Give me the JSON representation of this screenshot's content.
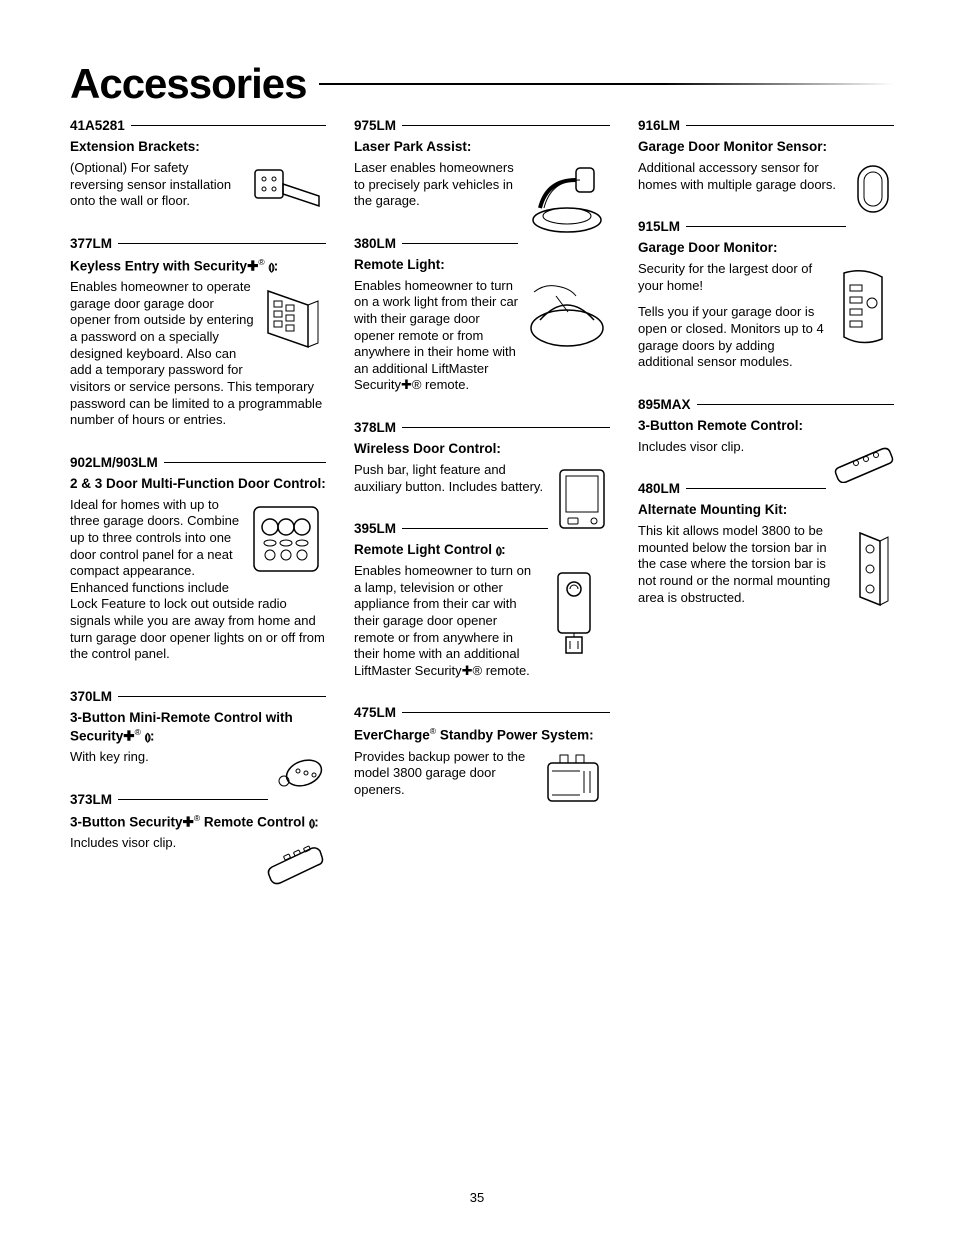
{
  "page_title": "Accessories",
  "page_number": "35",
  "columns": [
    [
      {
        "model": "41A5281",
        "title": "Extension Brackets:",
        "body": "(Optional) For safety reversing sensor installation onto the wall or floor.",
        "illus": "bracket",
        "iw": 76,
        "ih": 54
      },
      {
        "model": "377LM",
        "title_html": "Keyless Entry with Security<span class=\"plus\">✚</span><span class=\"reg\">®</span> <span class=\"sym\">⦅⦆</span>:",
        "body": "Enables homeowner to operate garage door garage door opener from outside by entering a password on a specially designed keyboard. Also can add a temporary password for visitors or service persons. This temporary password can be limited to a programmable number of hours or entries.",
        "illus": "keypad",
        "iw": 66,
        "ih": 78,
        "wrap_after": 4
      },
      {
        "model": "902LM/903LM",
        "title": "2 & 3 Door Multi-Function Door Control:",
        "body": "Ideal for homes with up to three garage doors. Combine up to three controls into one door control panel for a neat compact appearance. Enhanced functions include Lock Feature to lock out outside radio signals while you are away from home and turn garage door opener lights on or off from the control panel.",
        "illus": "multi-control",
        "iw": 80,
        "ih": 80,
        "wrap_after": 4
      },
      {
        "model": "370LM",
        "title_html": "3-Button Mini-Remote Control with Security<span class=\"plus\">✚</span><span class=\"reg\">®</span> <span class=\"sym\">⦅⦆</span>:",
        "body": "With key ring.",
        "illus": "mini-remote",
        "iw": 52,
        "ih": 42
      },
      {
        "model": "373LM",
        "title_html": "3-Button Security<span class=\"plus\">✚</span><span class=\"reg\">®</span> Remote Control <span class=\"sym\">⦅⦆</span>:",
        "body": "Includes visor clip.",
        "illus": "visor-remote",
        "iw": 64,
        "ih": 50
      }
    ],
    [
      {
        "model": "975LM",
        "title": "Laser Park Assist:",
        "body": "Laser enables homeowners to precisely park vehicles in the garage.",
        "illus": "laser-park",
        "iw": 86,
        "ih": 74
      },
      {
        "model": "380LM",
        "title": "Remote Light:",
        "body": "Enables homeowner to turn on a work light from their car with their garage door opener remote or from anywhere in their home with an additional LiftMaster Security✚® remote.",
        "illus": "remote-light",
        "iw": 86,
        "ih": 78,
        "wrap_after": 2
      },
      {
        "model": "378LM",
        "title": "Wireless Door Control:",
        "body": "Push bar, light feature and auxiliary button. Includes battery.",
        "illus": "wireless-door",
        "iw": 56,
        "ih": 74
      },
      {
        "model": "395LM",
        "title_html": "Remote Light Control <span class=\"sym\">⦅⦆</span>:",
        "body": "Enables homeowner to turn on a lamp, television or other appliance from their car with their garage door opener remote or from anywhere in their home with an additional LiftMaster Security✚® remote.",
        "illus": "light-control",
        "iw": 70,
        "ih": 96,
        "wrap_after": 1
      },
      {
        "model": "475LM",
        "title_html": "EverCharge<span class=\"reg\">®</span> Standby Power System:",
        "body": "Provides backup power to the model 3800 garage door openers.",
        "illus": "standby-power",
        "iw": 70,
        "ih": 56
      }
    ],
    [
      {
        "model": "916LM",
        "title": "Garage Door Monitor Sensor:",
        "body": "Additional accessory sensor for homes with multiple garage doors.",
        "illus": "monitor-sensor",
        "iw": 42,
        "ih": 54
      },
      {
        "model": "915LM",
        "title": "Garage Door Monitor:",
        "body": "Security for the largest door of your home!\nTells you if your garage door is open or closed. Monitors up to 4 garage doors by adding additional sensor modules.",
        "illus": "monitor",
        "iw": 62,
        "ih": 88,
        "two_para": true
      },
      {
        "model": "895MAX",
        "title": "3-Button Remote Control:",
        "body": "Includes visor clip.",
        "illus": "max-remote",
        "iw": 62,
        "ih": 42
      },
      {
        "model": "480LM",
        "title": "Alternate Mounting Kit:",
        "body": "This kit allows model 3800 to be mounted below the torsion bar in the case where the torsion bar is not round or the normal mounting area is obstructed.",
        "illus": "mount-kit",
        "iw": 48,
        "ih": 94
      }
    ]
  ]
}
